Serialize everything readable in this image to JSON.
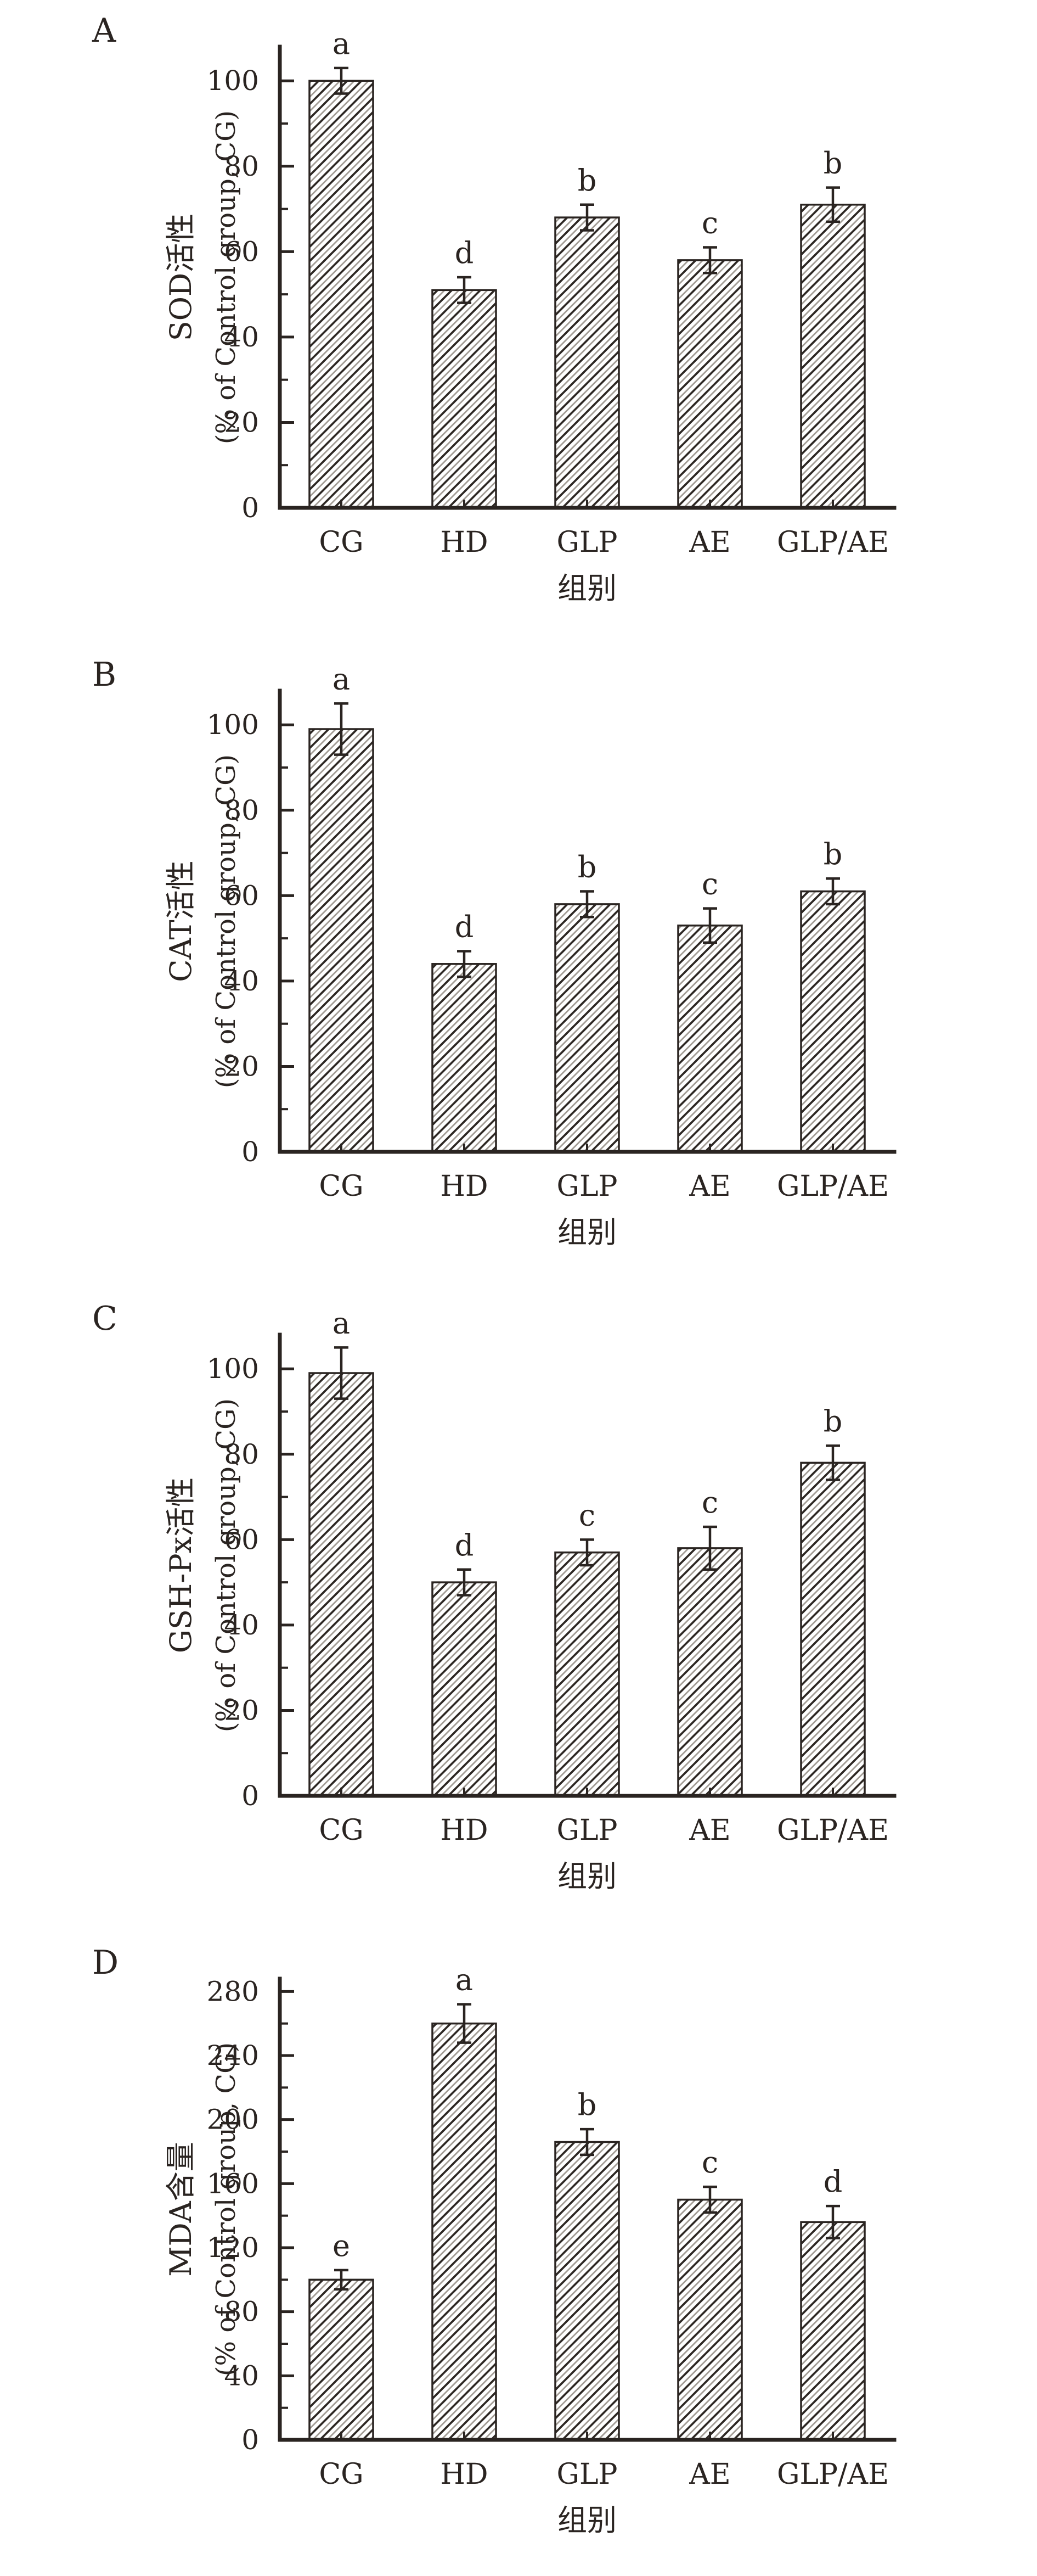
{
  "chart_data": [
    {
      "type": "bar",
      "panel_label": "A",
      "ylabel": "SOD活性",
      "ylabel_sub": "(% of Control group, CG)",
      "xlabel": "组别",
      "categories": [
        "CG",
        "HD",
        "GLP",
        "AE",
        "GLP/AE"
      ],
      "values": [
        100,
        51,
        68,
        58,
        71
      ],
      "errors": [
        3,
        3,
        3,
        3,
        4
      ],
      "sig_letters": [
        "a",
        "d",
        "b",
        "c",
        "b"
      ],
      "yticks": [
        0,
        20,
        40,
        60,
        80,
        100
      ],
      "minor_tick_step": 10,
      "ylim": [
        0,
        108
      ],
      "grid": false,
      "legend": "none",
      "bar_fill": "#ffffff",
      "hatch": "diagonal-forward",
      "ink_color": "#2a2421",
      "hatch_dark_color": "#2e2824",
      "hatch_light_color": "#a39d96"
    },
    {
      "type": "bar",
      "panel_label": "B",
      "ylabel": "CAT活性",
      "ylabel_sub": "(% of Control group, CG)",
      "xlabel": "组别",
      "categories": [
        "CG",
        "HD",
        "GLP",
        "AE",
        "GLP/AE"
      ],
      "values": [
        99,
        44,
        58,
        53,
        61
      ],
      "errors": [
        6,
        3,
        3,
        4,
        3
      ],
      "sig_letters": [
        "a",
        "d",
        "b",
        "c",
        "b"
      ],
      "yticks": [
        0,
        20,
        40,
        60,
        80,
        100
      ],
      "minor_tick_step": 10,
      "ylim": [
        0,
        108
      ],
      "grid": false,
      "legend": "none",
      "bar_fill": "#ffffff",
      "hatch": "diagonal-forward",
      "ink_color": "#2a2421",
      "hatch_dark_color": "#2e2824",
      "hatch_light_color": "#a39d96"
    },
    {
      "type": "bar",
      "panel_label": "C",
      "ylabel": "GSH-Px活性",
      "ylabel_sub": "(% of Control group, CG)",
      "xlabel": "组别",
      "categories": [
        "CG",
        "HD",
        "GLP",
        "AE",
        "GLP/AE"
      ],
      "values": [
        99,
        50,
        57,
        58,
        78
      ],
      "errors": [
        6,
        3,
        3,
        5,
        4
      ],
      "sig_letters": [
        "a",
        "d",
        "c",
        "c",
        "b"
      ],
      "yticks": [
        0,
        20,
        40,
        60,
        80,
        100
      ],
      "minor_tick_step": 10,
      "ylim": [
        0,
        108
      ],
      "grid": false,
      "legend": "none",
      "bar_fill": "#ffffff",
      "hatch": "diagonal-forward",
      "ink_color": "#2a2421",
      "hatch_dark_color": "#2e2824",
      "hatch_light_color": "#a39d96"
    },
    {
      "type": "bar",
      "panel_label": "D",
      "ylabel": "MDA含量",
      "ylabel_sub": "(% of Control group, CG)",
      "xlabel": "组别",
      "categories": [
        "CG",
        "HD",
        "GLP",
        "AE",
        "GLP/AE"
      ],
      "values": [
        100,
        260,
        186,
        150,
        136
      ],
      "errors": [
        6,
        12,
        8,
        8,
        10
      ],
      "sig_letters": [
        "e",
        "a",
        "b",
        "c",
        "d"
      ],
      "yticks": [
        0,
        40,
        80,
        120,
        160,
        200,
        240,
        280
      ],
      "minor_tick_step": 20,
      "ylim": [
        0,
        288
      ],
      "grid": false,
      "legend": "none",
      "bar_fill": "#ffffff",
      "hatch": "diagonal-forward",
      "ink_color": "#2a2421",
      "hatch_dark_color": "#2e2824",
      "hatch_light_color": "#a39d96"
    }
  ]
}
